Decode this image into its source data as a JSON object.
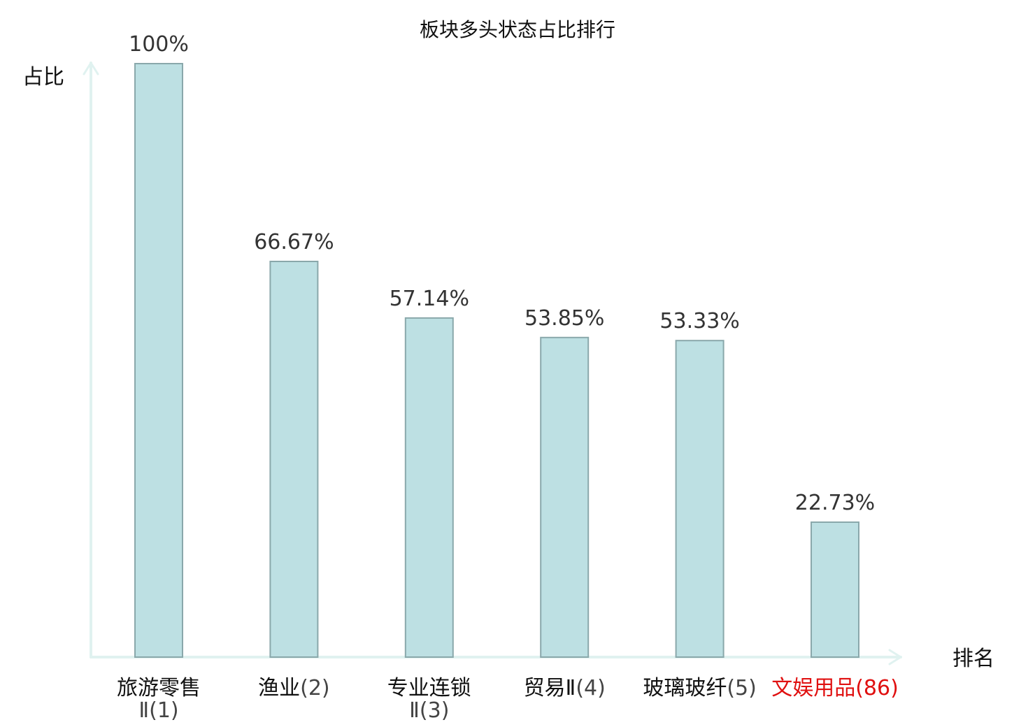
{
  "chart_data": {
    "type": "bar",
    "title": "板块多头状态占比排行",
    "ylabel": "占比",
    "xlabel": "排名",
    "ylim": [
      0,
      100
    ],
    "grid": false,
    "legend": "none",
    "categories": [
      {
        "name": "旅游零售",
        "name_line2": "Ⅱ",
        "rank": "(1)",
        "highlight": false
      },
      {
        "name": "渔业",
        "name_line2": "",
        "rank": "(2)",
        "highlight": false
      },
      {
        "name": "专业连锁",
        "name_line2": "Ⅱ",
        "rank": "(3)",
        "highlight": false
      },
      {
        "name": "贸易Ⅱ",
        "name_line2": "",
        "rank": "(4)",
        "highlight": false
      },
      {
        "name": "玻璃玻纤",
        "name_line2": "",
        "rank": "(5)",
        "highlight": false
      },
      {
        "name": "文娱用品",
        "name_line2": "",
        "rank": "(86)",
        "highlight": true
      }
    ],
    "values": [
      100,
      66.67,
      57.14,
      53.85,
      53.33,
      22.73
    ],
    "value_labels": [
      "100%",
      "66.67%",
      "57.14%",
      "53.85%",
      "53.33%",
      "22.73%"
    ]
  },
  "colors": {
    "bar_fill": "#bde0e3",
    "bar_stroke": "#8aa8ab",
    "axis": "#e0f2f0",
    "text": "#111111",
    "value_text": "#333333",
    "rank_text": "#444444",
    "highlight": "#e01010"
  }
}
